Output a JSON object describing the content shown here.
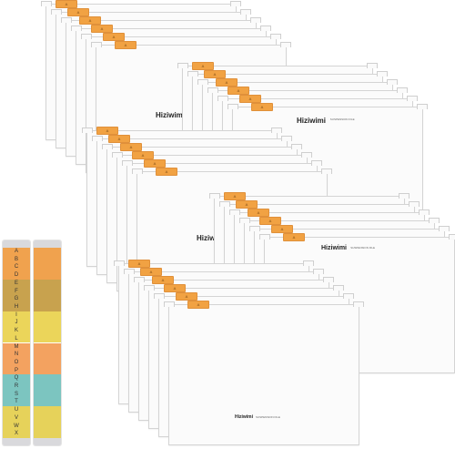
{
  "brand": {
    "name": "Hiziwimi",
    "subtitle": "SUSPENSION FILE"
  },
  "tab_label": "A",
  "strip_letters": [
    "A",
    "B",
    "C",
    "D",
    "E",
    "F",
    "G",
    "H",
    "I",
    "J",
    "K",
    "L",
    "M",
    "N",
    "O",
    "P",
    "Q",
    "R",
    "S",
    "T",
    "U",
    "V",
    "W",
    "X"
  ],
  "strip_colors": [
    "#f0a24e",
    "#c8a24e",
    "#ebd55a",
    "#f3a260",
    "#7cc5c0",
    "#e6d25a"
  ],
  "tab_color": "#f1a243"
}
